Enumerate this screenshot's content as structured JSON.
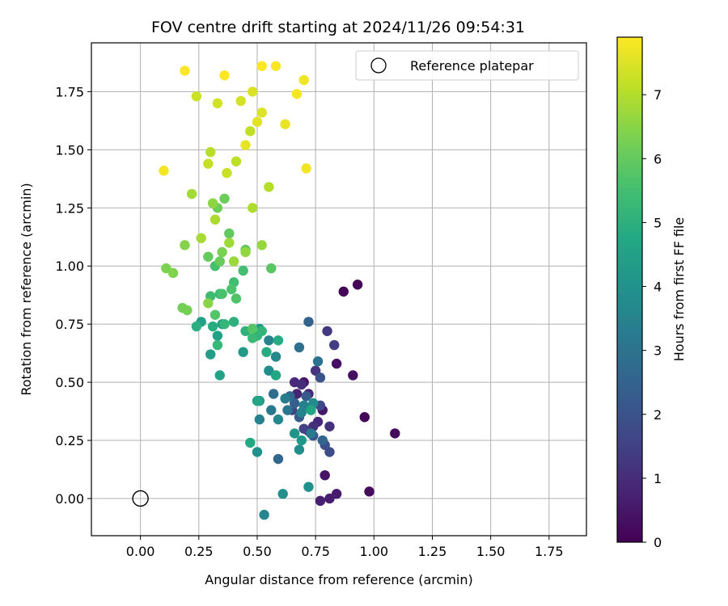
{
  "chart_data": {
    "type": "scatter",
    "title": "FOV centre drift starting at 2024/11/26 09:54:31",
    "xlabel": "Angular distance from reference (arcmin)",
    "ylabel": "Rotation from reference (arcmin)",
    "xlim": [
      -0.21,
      1.91
    ],
    "ylim": [
      -0.16,
      1.96
    ],
    "x_ticks": [
      "0.00",
      "0.25",
      "0.50",
      "0.75",
      "1.00",
      "1.25",
      "1.50",
      "1.75"
    ],
    "x_tick_values": [
      0,
      0.25,
      0.5,
      0.75,
      1.0,
      1.25,
      1.5,
      1.75
    ],
    "y_ticks": [
      "0.00",
      "0.25",
      "0.50",
      "0.75",
      "1.00",
      "1.25",
      "1.50",
      "1.75"
    ],
    "y_tick_values": [
      0,
      0.25,
      0.5,
      0.75,
      1.0,
      1.25,
      1.5,
      1.75
    ],
    "grid": true,
    "legend": {
      "placement": "top-right",
      "entries": [
        "Reference platepar"
      ]
    },
    "reference_point": {
      "x": 0.0,
      "y": 0.0,
      "marker": "open-circle",
      "color": "#000000"
    },
    "colorbar": {
      "label": "Hours from first FF file",
      "range": [
        0,
        7.9
      ],
      "ticks": [
        "0",
        "1",
        "2",
        "3",
        "4",
        "5",
        "6",
        "7"
      ],
      "tick_values": [
        0,
        1,
        2,
        3,
        4,
        5,
        6,
        7
      ],
      "colormap": "viridis"
    },
    "points": [
      [
        0.87,
        0.89,
        0.05
      ],
      [
        0.93,
        0.92,
        0.1
      ],
      [
        0.96,
        0.35,
        0.15
      ],
      [
        1.09,
        0.28,
        0.2
      ],
      [
        0.98,
        0.03,
        0.25
      ],
      [
        0.91,
        0.53,
        0.3
      ],
      [
        0.84,
        0.58,
        0.35
      ],
      [
        0.79,
        0.1,
        0.4
      ],
      [
        0.7,
        0.5,
        0.45
      ],
      [
        0.73,
        0.28,
        0.5
      ],
      [
        0.78,
        0.38,
        0.55
      ],
      [
        0.84,
        0.02,
        0.6
      ],
      [
        0.81,
        0.0,
        0.65
      ],
      [
        0.77,
        -0.01,
        0.7
      ],
      [
        0.72,
        0.29,
        0.75
      ],
      [
        0.67,
        0.45,
        0.8
      ],
      [
        0.72,
        0.45,
        0.85
      ],
      [
        0.76,
        0.33,
        0.9
      ],
      [
        0.66,
        0.5,
        0.95
      ],
      [
        0.69,
        0.49,
        1.0
      ],
      [
        0.74,
        0.31,
        1.05
      ],
      [
        0.81,
        0.31,
        1.1
      ],
      [
        0.75,
        0.55,
        1.2
      ],
      [
        0.8,
        0.72,
        1.3
      ],
      [
        0.83,
        0.66,
        1.4
      ],
      [
        0.7,
        0.3,
        1.5
      ],
      [
        0.65,
        0.38,
        1.6
      ],
      [
        0.77,
        0.4,
        1.7
      ],
      [
        0.81,
        0.2,
        1.8
      ],
      [
        0.79,
        0.23,
        1.9
      ],
      [
        0.77,
        0.52,
        2.0
      ],
      [
        0.74,
        0.27,
        2.1
      ],
      [
        0.71,
        0.44,
        2.2
      ],
      [
        0.68,
        0.35,
        2.3
      ],
      [
        0.66,
        0.41,
        2.4
      ],
      [
        0.72,
        0.76,
        2.5
      ],
      [
        0.78,
        0.25,
        2.55
      ],
      [
        0.59,
        0.17,
        2.6
      ],
      [
        0.64,
        0.44,
        2.7
      ],
      [
        0.57,
        0.45,
        2.8
      ],
      [
        0.68,
        0.65,
        2.9
      ],
      [
        0.76,
        0.59,
        3.0
      ],
      [
        0.63,
        0.38,
        3.1
      ],
      [
        0.56,
        0.38,
        3.15
      ],
      [
        0.73,
        0.28,
        3.2
      ],
      [
        0.62,
        0.43,
        3.3
      ],
      [
        0.51,
        0.34,
        3.4
      ],
      [
        0.7,
        0.4,
        3.45
      ],
      [
        0.55,
        0.68,
        3.5
      ],
      [
        0.69,
        0.37,
        3.55
      ],
      [
        0.53,
        -0.07,
        3.6
      ],
      [
        0.58,
        0.61,
        3.65
      ],
      [
        0.59,
        0.34,
        3.7
      ],
      [
        0.74,
        0.41,
        3.75
      ],
      [
        0.55,
        0.55,
        3.8
      ],
      [
        0.68,
        0.21,
        3.85
      ],
      [
        0.61,
        0.02,
        3.9
      ],
      [
        0.72,
        0.05,
        3.95
      ],
      [
        0.5,
        0.2,
        4.0
      ],
      [
        0.66,
        0.28,
        4.1
      ],
      [
        0.69,
        0.25,
        4.15
      ],
      [
        0.51,
        0.42,
        4.2
      ],
      [
        0.51,
        0.73,
        4.25
      ],
      [
        0.44,
        0.63,
        4.3
      ],
      [
        0.3,
        0.62,
        4.35
      ],
      [
        0.35,
        0.75,
        4.4
      ],
      [
        0.26,
        0.76,
        4.45
      ],
      [
        0.33,
        0.7,
        4.5
      ],
      [
        0.34,
        0.53,
        4.55
      ],
      [
        0.5,
        0.42,
        4.6
      ],
      [
        0.73,
        0.38,
        4.65
      ],
      [
        0.58,
        0.53,
        4.7
      ],
      [
        0.47,
        0.24,
        4.75
      ],
      [
        0.59,
        0.68,
        4.8
      ],
      [
        0.54,
        0.63,
        4.85
      ],
      [
        0.31,
        0.74,
        4.9
      ],
      [
        0.24,
        0.74,
        4.95
      ],
      [
        0.4,
        0.76,
        5.0
      ],
      [
        0.45,
        0.72,
        5.05
      ],
      [
        0.5,
        0.7,
        5.1
      ],
      [
        0.52,
        0.72,
        5.15
      ],
      [
        0.36,
        0.75,
        5.2
      ],
      [
        0.33,
        0.66,
        5.25
      ],
      [
        0.48,
        0.69,
        5.3
      ],
      [
        0.34,
        0.88,
        5.35
      ],
      [
        0.3,
        0.87,
        5.4
      ],
      [
        0.4,
        0.93,
        5.45
      ],
      [
        0.44,
        0.98,
        5.5
      ],
      [
        0.32,
        1.0,
        5.55
      ],
      [
        0.35,
        0.88,
        5.6
      ],
      [
        0.39,
        0.9,
        5.65
      ],
      [
        0.41,
        0.86,
        5.7
      ],
      [
        0.32,
        0.79,
        5.75
      ],
      [
        0.48,
        0.73,
        5.8
      ],
      [
        0.56,
        0.99,
        5.85
      ],
      [
        0.45,
        1.07,
        5.9
      ],
      [
        0.38,
        1.14,
        5.95
      ],
      [
        0.29,
        1.04,
        6.0
      ],
      [
        0.34,
        1.02,
        6.05
      ],
      [
        0.36,
        1.29,
        6.1
      ],
      [
        0.33,
        1.25,
        6.15
      ],
      [
        0.18,
        0.82,
        6.2
      ],
      [
        0.2,
        0.81,
        6.25
      ],
      [
        0.35,
        1.06,
        6.3
      ],
      [
        0.11,
        0.99,
        6.35
      ],
      [
        0.14,
        0.97,
        6.4
      ],
      [
        0.19,
        1.09,
        6.45
      ],
      [
        0.29,
        0.84,
        6.5
      ],
      [
        0.31,
        1.27,
        6.55
      ],
      [
        0.45,
        1.06,
        6.6
      ],
      [
        0.52,
        1.09,
        6.65
      ],
      [
        0.4,
        1.02,
        6.7
      ],
      [
        0.38,
        1.1,
        6.75
      ],
      [
        0.22,
        1.31,
        6.8
      ],
      [
        0.26,
        1.12,
        6.85
      ],
      [
        0.32,
        1.2,
        6.9
      ],
      [
        0.48,
        1.25,
        6.95
      ],
      [
        0.55,
        1.34,
        7.0
      ],
      [
        0.3,
        1.49,
        7.05
      ],
      [
        0.41,
        1.45,
        7.1
      ],
      [
        0.47,
        1.58,
        7.15
      ],
      [
        0.29,
        1.44,
        7.2
      ],
      [
        0.37,
        1.4,
        7.25
      ],
      [
        0.24,
        1.73,
        7.3
      ],
      [
        0.33,
        1.7,
        7.35
      ],
      [
        0.43,
        1.71,
        7.4
      ],
      [
        0.48,
        1.75,
        7.45
      ],
      [
        0.52,
        1.66,
        7.5
      ],
      [
        0.5,
        1.62,
        7.55
      ],
      [
        0.45,
        1.52,
        7.6
      ],
      [
        0.62,
        1.61,
        7.65
      ],
      [
        0.7,
        1.8,
        7.7
      ],
      [
        0.71,
        1.42,
        7.75
      ],
      [
        0.1,
        1.41,
        7.8
      ],
      [
        0.19,
        1.84,
        7.85
      ],
      [
        0.36,
        1.82,
        7.9
      ],
      [
        0.52,
        1.86,
        7.9
      ],
      [
        0.58,
        1.86,
        7.85
      ],
      [
        0.67,
        1.74,
        7.8
      ]
    ]
  }
}
